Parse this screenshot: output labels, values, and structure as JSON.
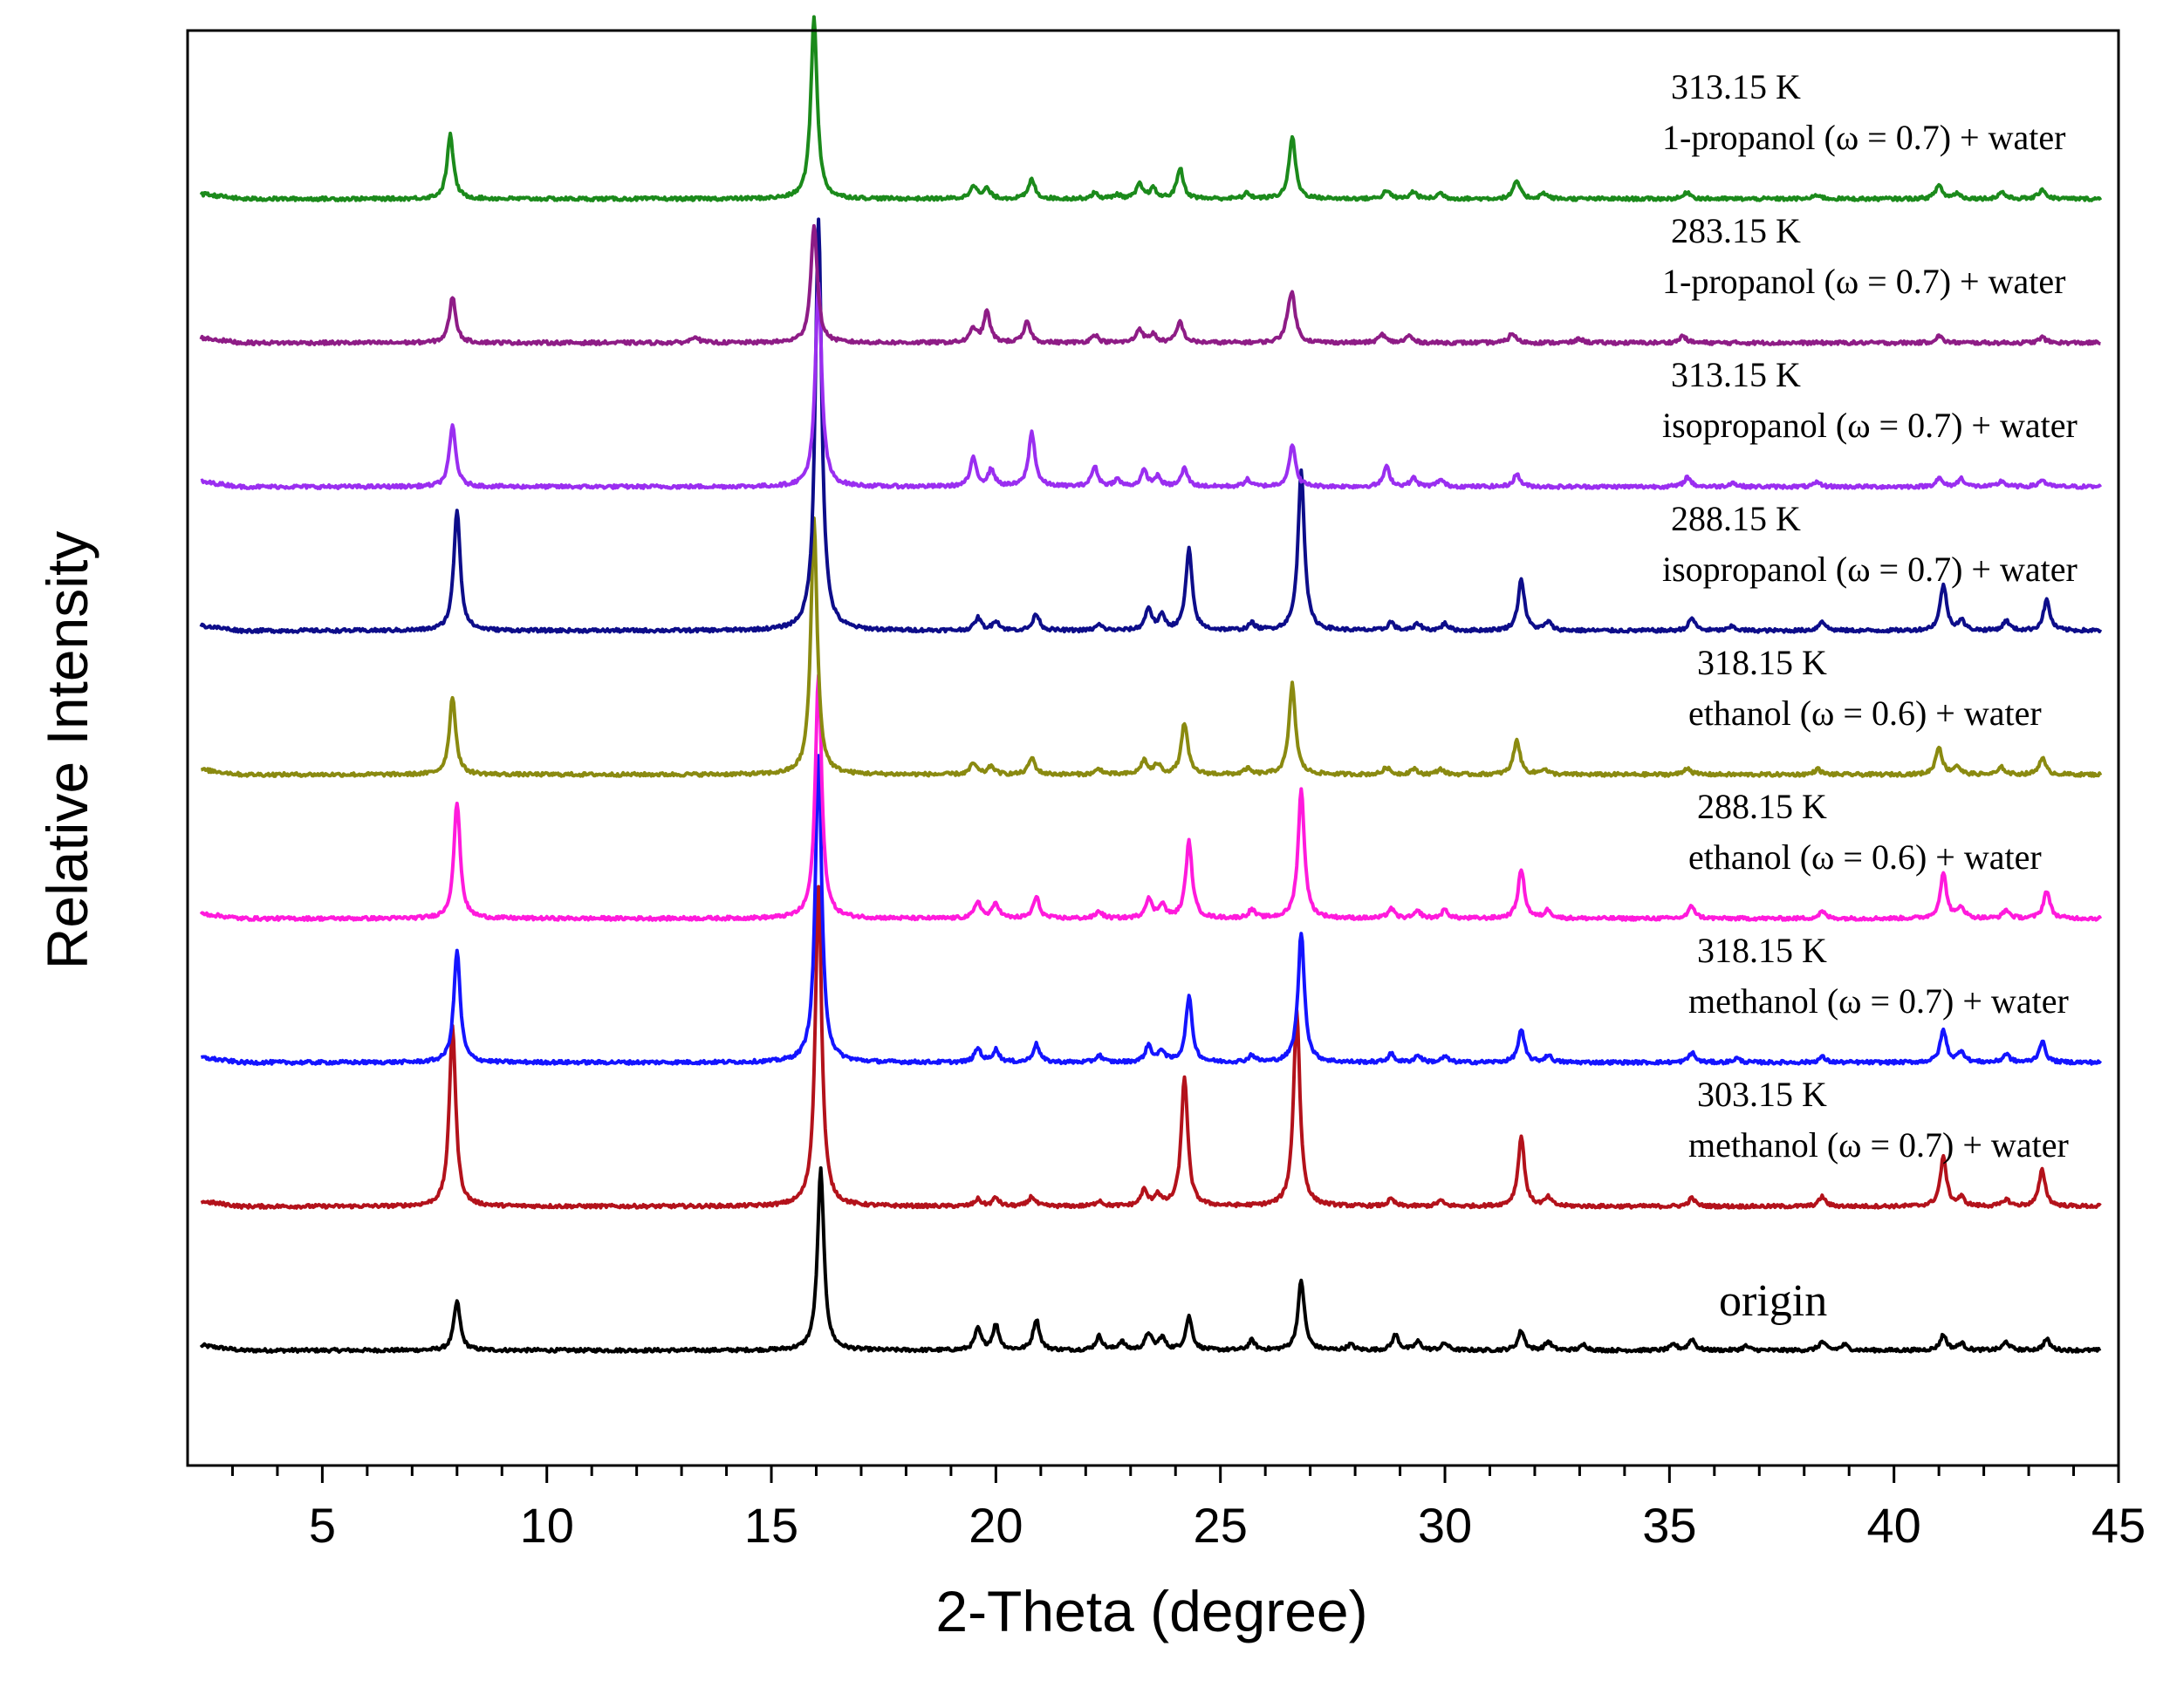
{
  "chart_data": {
    "type": "line",
    "title": "",
    "xlabel": "2-Theta (degree)",
    "ylabel": "Relative Intensity",
    "xlim": [
      2,
      45
    ],
    "xticks": [
      5,
      10,
      15,
      20,
      25,
      30,
      35,
      40,
      45
    ],
    "tick_labels": [
      "5",
      "10",
      "15",
      "20",
      "25",
      "30",
      "35",
      "40",
      "45"
    ],
    "y_axis_ticks": "none",
    "grid": false,
    "legend": "inline labels at right of each trace",
    "series": [
      {
        "name": "origin",
        "label_lines": [
          "origin"
        ],
        "color": "#000000",
        "offset": 0,
        "peaks": [
          [
            8.0,
            0.35
          ],
          [
            16.1,
            1.3
          ],
          [
            19.6,
            0.15
          ],
          [
            20.0,
            0.18
          ],
          [
            20.9,
            0.22
          ],
          [
            22.3,
            0.1
          ],
          [
            22.8,
            0.06
          ],
          [
            23.4,
            0.12
          ],
          [
            23.7,
            0.09
          ],
          [
            24.3,
            0.24
          ],
          [
            25.7,
            0.07
          ],
          [
            26.8,
            0.5
          ],
          [
            27.9,
            0.04
          ],
          [
            28.9,
            0.11
          ],
          [
            29.4,
            0.06
          ],
          [
            30.0,
            0.05
          ],
          [
            31.7,
            0.14
          ],
          [
            32.3,
            0.06
          ],
          [
            33.1,
            0.04
          ],
          [
            35.1,
            0.04
          ],
          [
            35.5,
            0.08
          ],
          [
            36.7,
            0.03
          ],
          [
            38.4,
            0.06
          ],
          [
            38.9,
            0.04
          ],
          [
            41.1,
            0.11
          ],
          [
            41.5,
            0.05
          ],
          [
            42.5,
            0.06
          ],
          [
            43.4,
            0.08
          ]
        ]
      },
      {
        "name": "303.15 K methanol (ω = 0.7) + water",
        "label_lines": [
          "303.15 K",
          "methanol (ω = 0.7) + water"
        ],
        "color": "#b3121b",
        "offset": 1,
        "peaks": [
          [
            7.9,
            1.3
          ],
          [
            16.05,
            2.3
          ],
          [
            19.6,
            0.05
          ],
          [
            20.0,
            0.06
          ],
          [
            20.8,
            0.07
          ],
          [
            22.3,
            0.04
          ],
          [
            23.3,
            0.11
          ],
          [
            23.6,
            0.08
          ],
          [
            24.2,
            0.93
          ],
          [
            26.7,
            1.4
          ],
          [
            28.8,
            0.05
          ],
          [
            29.9,
            0.04
          ],
          [
            31.7,
            0.5
          ],
          [
            32.3,
            0.06
          ],
          [
            35.5,
            0.06
          ],
          [
            38.4,
            0.07
          ],
          [
            41.1,
            0.35
          ],
          [
            41.5,
            0.06
          ],
          [
            42.5,
            0.05
          ],
          [
            43.3,
            0.26
          ]
        ]
      },
      {
        "name": "318.15 K methanol (ω = 0.7) + water",
        "label_lines": [
          "318.15 K",
          "methanol (ω = 0.7) + water"
        ],
        "color": "#1414ff",
        "offset": 2,
        "peaks": [
          [
            8.0,
            0.8
          ],
          [
            16.05,
            2.2
          ],
          [
            19.6,
            0.1
          ],
          [
            20.0,
            0.09
          ],
          [
            20.9,
            0.13
          ],
          [
            22.3,
            0.05
          ],
          [
            23.4,
            0.12
          ],
          [
            23.7,
            0.08
          ],
          [
            24.3,
            0.47
          ],
          [
            25.7,
            0.05
          ],
          [
            26.8,
            0.93
          ],
          [
            28.8,
            0.06
          ],
          [
            29.4,
            0.05
          ],
          [
            30.0,
            0.04
          ],
          [
            31.7,
            0.23
          ],
          [
            32.3,
            0.05
          ],
          [
            35.5,
            0.07
          ],
          [
            36.5,
            0.03
          ],
          [
            38.4,
            0.04
          ],
          [
            41.1,
            0.23
          ],
          [
            41.5,
            0.08
          ],
          [
            42.5,
            0.06
          ],
          [
            43.3,
            0.15
          ]
        ]
      },
      {
        "name": "288.15 K ethanol (ω = 0.6) + water",
        "label_lines": [
          "288.15 K",
          "ethanol (ω = 0.6) + water"
        ],
        "color": "#ff1adc",
        "offset": 3,
        "peaks": [
          [
            8.0,
            0.83
          ],
          [
            16.05,
            1.75
          ],
          [
            19.6,
            0.12
          ],
          [
            20.0,
            0.11
          ],
          [
            20.9,
            0.15
          ],
          [
            22.3,
            0.05
          ],
          [
            23.4,
            0.14
          ],
          [
            23.7,
            0.1
          ],
          [
            24.3,
            0.55
          ],
          [
            25.7,
            0.06
          ],
          [
            26.8,
            0.92
          ],
          [
            28.8,
            0.07
          ],
          [
            29.4,
            0.05
          ],
          [
            30.0,
            0.06
          ],
          [
            31.7,
            0.35
          ],
          [
            32.3,
            0.06
          ],
          [
            35.5,
            0.09
          ],
          [
            38.4,
            0.05
          ],
          [
            41.1,
            0.32
          ],
          [
            41.5,
            0.08
          ],
          [
            42.5,
            0.06
          ],
          [
            43.4,
            0.2
          ]
        ]
      },
      {
        "name": "318.15 K ethanol (ω = 0.6) + water",
        "label_lines": [
          "318.15 K",
          "ethanol (ω = 0.6) + water"
        ],
        "color": "#8a8a10",
        "offset": 4,
        "peaks": [
          [
            7.9,
            0.56
          ],
          [
            15.95,
            1.83
          ],
          [
            19.5,
            0.08
          ],
          [
            19.9,
            0.06
          ],
          [
            20.8,
            0.12
          ],
          [
            22.3,
            0.04
          ],
          [
            23.3,
            0.1
          ],
          [
            23.6,
            0.07
          ],
          [
            24.2,
            0.37
          ],
          [
            25.6,
            0.04
          ],
          [
            26.6,
            0.65
          ],
          [
            28.7,
            0.05
          ],
          [
            29.3,
            0.04
          ],
          [
            29.9,
            0.04
          ],
          [
            31.6,
            0.25
          ],
          [
            32.2,
            0.04
          ],
          [
            35.4,
            0.05
          ],
          [
            38.3,
            0.04
          ],
          [
            41.0,
            0.2
          ],
          [
            41.4,
            0.06
          ],
          [
            42.4,
            0.05
          ],
          [
            43.3,
            0.12
          ]
        ]
      },
      {
        "name": "288.15 K isopropanol (ω = 0.7) + water",
        "label_lines": [
          "288.15 K",
          "isopropanol (ω = 0.7) + water"
        ],
        "color": "#0d0d8a",
        "offset": 5,
        "peaks": [
          [
            8.0,
            0.87
          ],
          [
            16.05,
            2.95
          ],
          [
            19.6,
            0.09
          ],
          [
            20.0,
            0.07
          ],
          [
            20.9,
            0.12
          ],
          [
            22.3,
            0.04
          ],
          [
            23.4,
            0.16
          ],
          [
            23.7,
            0.1
          ],
          [
            24.3,
            0.58
          ],
          [
            25.7,
            0.05
          ],
          [
            26.8,
            1.15
          ],
          [
            28.8,
            0.06
          ],
          [
            29.4,
            0.05
          ],
          [
            30.0,
            0.05
          ],
          [
            31.7,
            0.37
          ],
          [
            32.3,
            0.06
          ],
          [
            35.5,
            0.09
          ],
          [
            36.4,
            0.03
          ],
          [
            38.4,
            0.07
          ],
          [
            41.1,
            0.33
          ],
          [
            41.5,
            0.07
          ],
          [
            42.5,
            0.07
          ],
          [
            43.4,
            0.22
          ]
        ]
      },
      {
        "name": "313.15 K isopropanol (ω = 0.7) + water",
        "label_lines": [
          "313.15 K",
          "isopropanol (ω = 0.7) + water"
        ],
        "color": "#9a2ef0",
        "offset": 6,
        "peaks": [
          [
            7.9,
            0.44
          ],
          [
            16.05,
            1.45
          ],
          [
            19.5,
            0.2
          ],
          [
            19.9,
            0.12
          ],
          [
            20.8,
            0.39
          ],
          [
            22.2,
            0.14
          ],
          [
            22.7,
            0.05
          ],
          [
            23.3,
            0.11
          ],
          [
            23.6,
            0.07
          ],
          [
            24.2,
            0.13
          ],
          [
            25.6,
            0.05
          ],
          [
            26.6,
            0.3
          ],
          [
            28.7,
            0.14
          ],
          [
            29.3,
            0.06
          ],
          [
            29.9,
            0.05
          ],
          [
            31.6,
            0.09
          ],
          [
            35.4,
            0.07
          ],
          [
            36.4,
            0.03
          ],
          [
            38.3,
            0.03
          ],
          [
            41.0,
            0.06
          ],
          [
            41.5,
            0.06
          ],
          [
            42.4,
            0.04
          ],
          [
            43.3,
            0.05
          ]
        ]
      },
      {
        "name": "283.15 K 1-propanol (ω = 0.7) + water",
        "label_lines": [
          "283.15 K",
          "1-propanol (ω = 0.7) + water"
        ],
        "color": "#8e1c86",
        "offset": 7,
        "peaks": [
          [
            7.9,
            0.33
          ],
          [
            13.3,
            0.05
          ],
          [
            15.95,
            0.85
          ],
          [
            19.5,
            0.1
          ],
          [
            19.8,
            0.22
          ],
          [
            20.7,
            0.15
          ],
          [
            22.2,
            0.06
          ],
          [
            23.2,
            0.1
          ],
          [
            23.5,
            0.06
          ],
          [
            24.1,
            0.15
          ],
          [
            26.5,
            0.1
          ],
          [
            26.6,
            0.32
          ],
          [
            28.6,
            0.06
          ],
          [
            29.2,
            0.05
          ],
          [
            31.5,
            0.07
          ],
          [
            33.0,
            0.03
          ],
          [
            35.3,
            0.05
          ],
          [
            41.0,
            0.05
          ],
          [
            43.3,
            0.04
          ]
        ]
      },
      {
        "name": "313.15 K 1-propanol (ω = 0.7) + water",
        "label_lines": [
          "313.15 K",
          "1-propanol (ω = 0.7) + water"
        ],
        "color": "#1b8a1b",
        "offset": 8,
        "peaks": [
          [
            7.85,
            0.46
          ],
          [
            15.95,
            1.3
          ],
          [
            19.5,
            0.1
          ],
          [
            19.8,
            0.07
          ],
          [
            20.8,
            0.14
          ],
          [
            22.2,
            0.04
          ],
          [
            22.7,
            0.03
          ],
          [
            23.2,
            0.1
          ],
          [
            23.5,
            0.07
          ],
          [
            24.1,
            0.22
          ],
          [
            25.6,
            0.04
          ],
          [
            26.6,
            0.45
          ],
          [
            28.7,
            0.06
          ],
          [
            29.3,
            0.05
          ],
          [
            29.9,
            0.04
          ],
          [
            31.6,
            0.13
          ],
          [
            32.2,
            0.04
          ],
          [
            35.4,
            0.05
          ],
          [
            38.3,
            0.03
          ],
          [
            41.0,
            0.1
          ],
          [
            41.4,
            0.04
          ],
          [
            42.4,
            0.05
          ],
          [
            43.3,
            0.07
          ]
        ]
      }
    ]
  }
}
